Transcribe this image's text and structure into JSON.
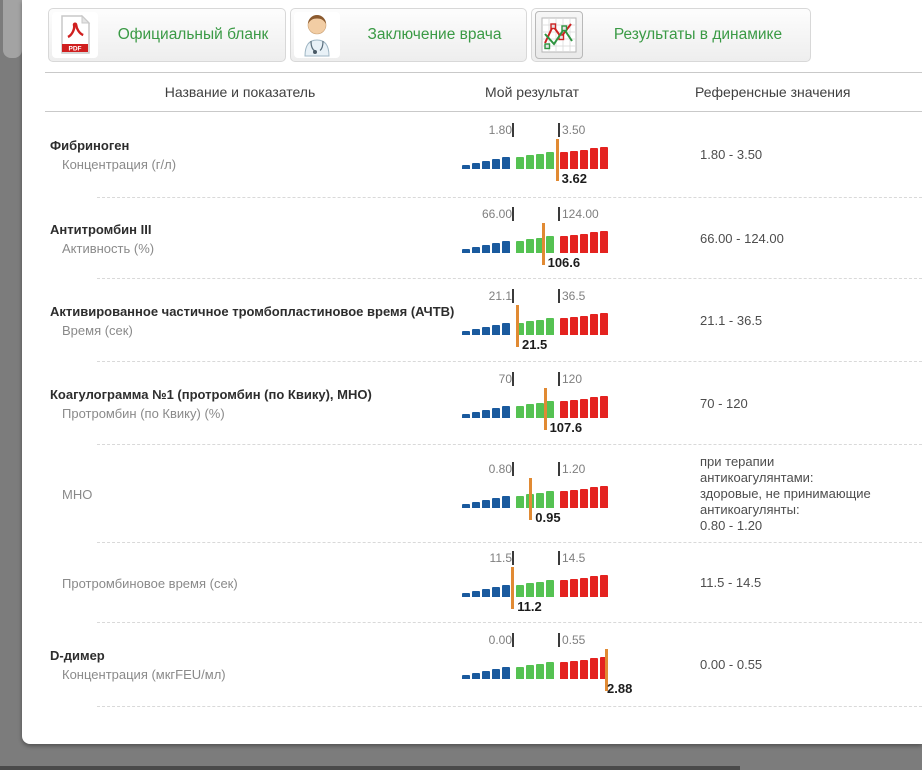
{
  "toolbar": {
    "buttons": [
      {
        "label": "Официальный бланк",
        "icon": "pdf-icon"
      },
      {
        "label": "Заключение врача",
        "icon": "doctor-icon"
      },
      {
        "label": "Результаты в динамике",
        "icon": "chart-icon"
      }
    ]
  },
  "table": {
    "headers": {
      "name": "Название и показатель",
      "result": "Мой результат",
      "reference": "Референсные значения"
    },
    "rows": [
      {
        "title": "Фибриноген",
        "subtitle": "Концентрация (г/л)",
        "low": "1.80",
        "high": "3.50",
        "value": "3.62",
        "reference": [
          "1.80 - 3.50"
        ]
      },
      {
        "title": "Антитромбин III",
        "subtitle": "Активность (%)",
        "low": "66.00",
        "high": "124.00",
        "value": "106.6",
        "reference": [
          "66.00 - 124.00"
        ]
      },
      {
        "title": "Активированное частичное тромбопластиновое время (АЧТВ)",
        "subtitle": "Время (сек)",
        "low": "21.1",
        "high": "36.5",
        "value": "21.5",
        "reference": [
          "21.1 - 36.5"
        ]
      },
      {
        "title": "Коагулограмма №1 (протромбин (по Квику), МНО)",
        "subtitle": "Протромбин (по Квику) (%)",
        "low": "70",
        "high": "120",
        "value": "107.6",
        "reference": [
          "70 - 120"
        ]
      },
      {
        "title": "",
        "subtitle": "МНО",
        "low": "0.80",
        "high": "1.20",
        "value": "0.95",
        "reference": [
          "при терапии",
          "антикоагулянтами:",
          "здоровые, не принимающие",
          "антикоагулянты:",
          "0.80 - 1.20"
        ]
      },
      {
        "title": "",
        "subtitle": "Протромбиновое время (сек)",
        "low": "11.5",
        "high": "14.5",
        "value": "11.2",
        "reference": [
          "11.5 - 14.5"
        ]
      },
      {
        "title": "D-димер",
        "subtitle": "Концентрация (мкгFEU/мл)",
        "low": "0.00",
        "high": "0.55",
        "value": "2.88",
        "reference": [
          "0.00 - 0.55"
        ]
      }
    ]
  },
  "colors": {
    "accent_green_text": "#3a9a45",
    "bar_blue": "#1a5a9e",
    "bar_green": "#55c252",
    "bar_red": "#e42320",
    "marker_orange": "#e18a33",
    "page_background": "#7c7c7c"
  }
}
